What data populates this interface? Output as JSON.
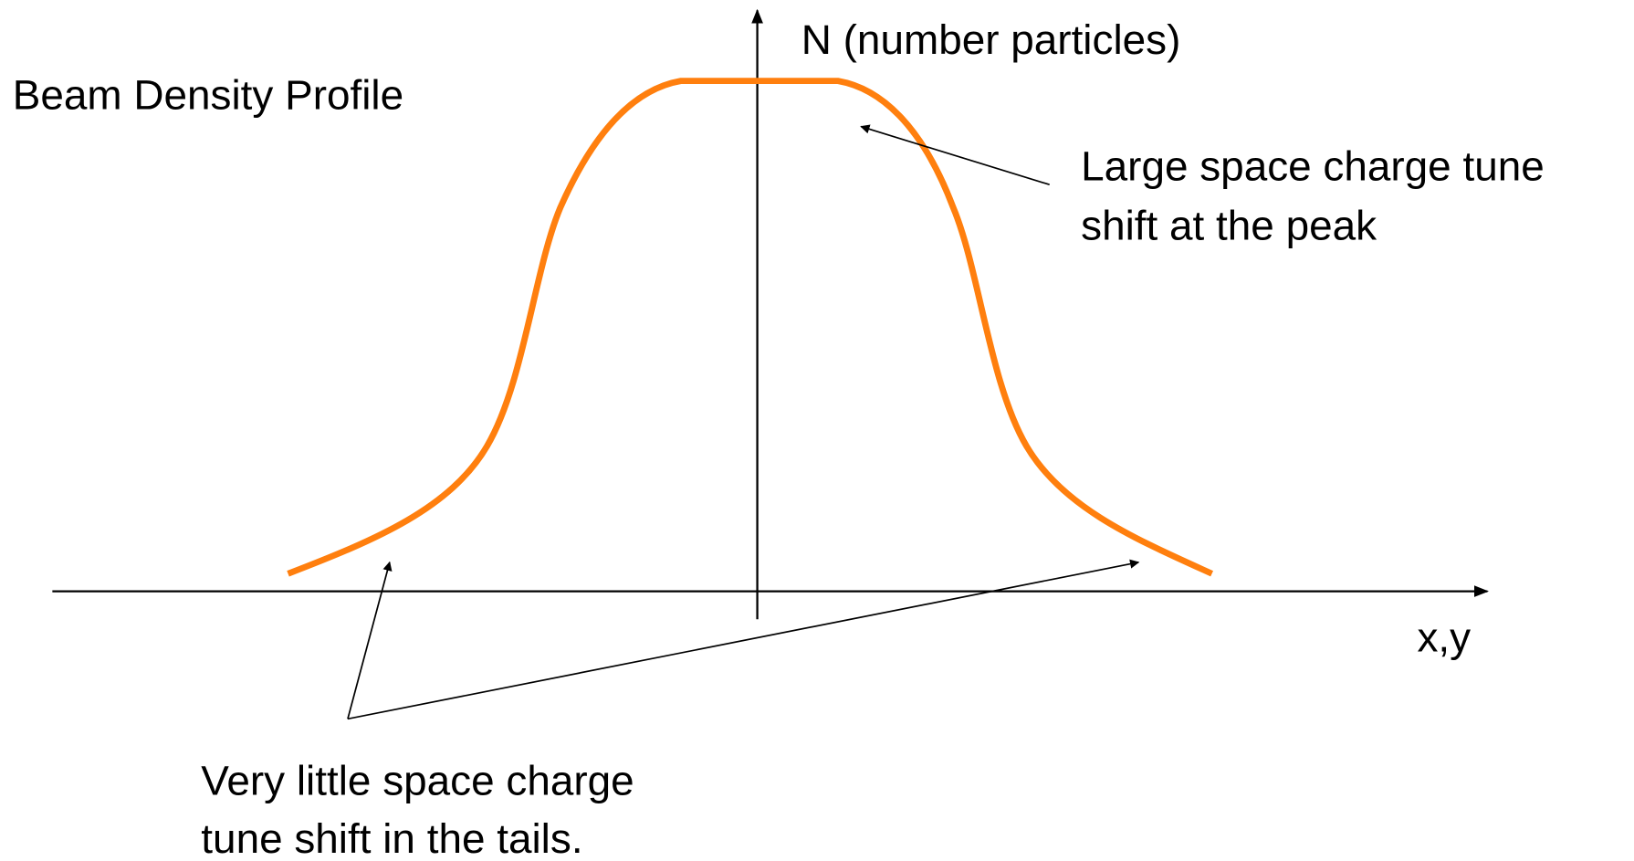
{
  "title": "Beam Density Profile",
  "y_axis_label": "N (number particles)",
  "x_axis_label": "x,y",
  "annotations": [
    {
      "lines": [
        "Large space charge tune",
        "shift at the peak"
      ]
    },
    {
      "lines": [
        "Very little space charge",
        "tune shift in the tails."
      ]
    }
  ]
}
